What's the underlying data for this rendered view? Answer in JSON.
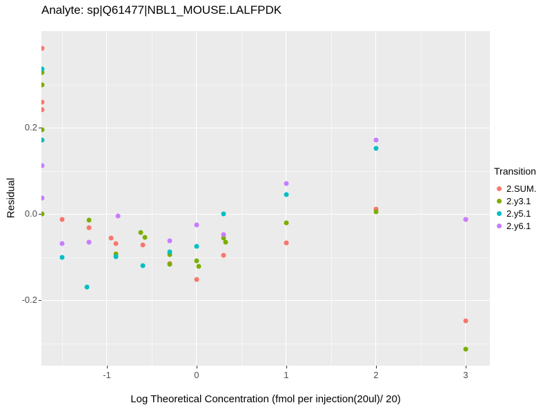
{
  "chart_data": {
    "type": "scatter",
    "title": "Analyte: sp|Q61477|NBL1_MOUSE.LALFPDK",
    "xlabel": "Log Theoretical Concentration (fmol per injection(20ul)/ 20)",
    "ylabel": "Residual",
    "xlim": [
      -1.73,
      3.27
    ],
    "ylim": [
      -0.352,
      0.424
    ],
    "x_ticks": [
      -1,
      0,
      1,
      2,
      3
    ],
    "x_tick_labels": [
      "-1",
      "0",
      "1",
      "2",
      "3"
    ],
    "y_ticks": [
      -0.2,
      0,
      0.2
    ],
    "y_tick_labels": [
      "-0.2",
      "0.0",
      "0.2"
    ],
    "grid": true,
    "legend_title": "Transition",
    "legend_position": "right",
    "panel_background": "#EBEBEB",
    "series": [
      {
        "name": "2.SUM.",
        "color": "#F8766D",
        "points": [
          [
            -1.72,
            0.384
          ],
          [
            -1.72,
            0.259
          ],
          [
            -1.72,
            0.242
          ],
          [
            -1.5,
            -0.013
          ],
          [
            -1.2,
            -0.032
          ],
          [
            -0.95,
            -0.056
          ],
          [
            -0.9,
            -0.068
          ],
          [
            -0.6,
            -0.072
          ],
          [
            -0.3,
            -0.115
          ],
          [
            0,
            -0.152
          ],
          [
            0.3,
            -0.096
          ],
          [
            1,
            -0.067
          ],
          [
            2,
            0.012
          ],
          [
            3,
            -0.012
          ],
          [
            3,
            -0.248
          ]
        ]
      },
      {
        "name": "2.y3.1",
        "color": "#7CAE00",
        "points": [
          [
            -1.72,
            0.328
          ],
          [
            -1.72,
            0.3
          ],
          [
            -1.72,
            0.195
          ],
          [
            -1.72,
            0.0
          ],
          [
            -1.2,
            -0.015
          ],
          [
            -0.9,
            -0.092
          ],
          [
            -0.62,
            -0.043
          ],
          [
            -0.58,
            -0.055
          ],
          [
            -0.3,
            -0.095
          ],
          [
            -0.3,
            -0.117
          ],
          [
            0,
            -0.108
          ],
          [
            0.02,
            -0.122
          ],
          [
            0.3,
            -0.056
          ],
          [
            0.32,
            -0.065
          ],
          [
            1,
            -0.021
          ],
          [
            2,
            0.005
          ],
          [
            3,
            -0.313
          ]
        ]
      },
      {
        "name": "2.y5.1",
        "color": "#00BFC4",
        "points": [
          [
            -1.72,
            0.336
          ],
          [
            -1.72,
            0.172
          ],
          [
            -1.5,
            -0.1
          ],
          [
            -1.22,
            -0.17
          ],
          [
            -0.9,
            -0.099
          ],
          [
            -0.6,
            -0.12
          ],
          [
            -0.3,
            -0.088
          ],
          [
            0,
            -0.075
          ],
          [
            0.3,
            0.0
          ],
          [
            1,
            0.045
          ],
          [
            2,
            0.152
          ]
        ]
      },
      {
        "name": "2.y6.1",
        "color": "#C77CFF",
        "points": [
          [
            -1.72,
            0.112
          ],
          [
            -1.72,
            0.037
          ],
          [
            -1.5,
            -0.068
          ],
          [
            -1.2,
            -0.065
          ],
          [
            -0.88,
            -0.005
          ],
          [
            -0.3,
            -0.062
          ],
          [
            0,
            -0.025
          ],
          [
            0.3,
            -0.048
          ],
          [
            1,
            0.07
          ],
          [
            2,
            0.172
          ],
          [
            3,
            -0.013
          ]
        ]
      }
    ]
  }
}
